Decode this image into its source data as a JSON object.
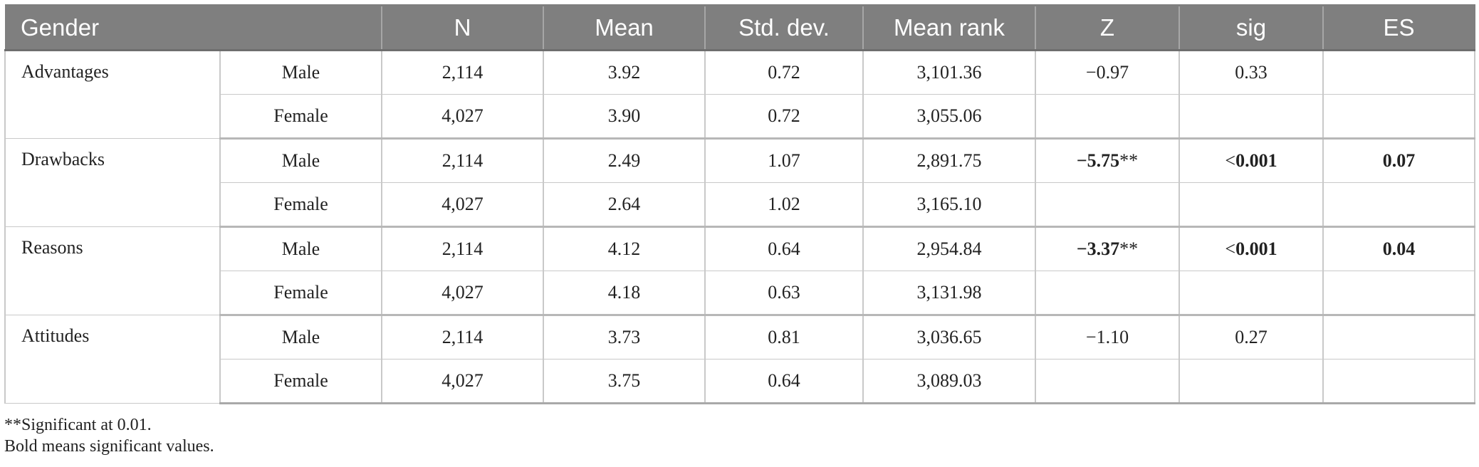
{
  "table": {
    "headers": [
      "Gender",
      "",
      "N",
      "Mean",
      "Std. dev.",
      "Mean rank",
      "Z",
      "sig",
      "ES"
    ],
    "groups": [
      {
        "variable": "Advantages",
        "z": "−0.97",
        "z_stars": "",
        "z_bold": false,
        "sig": "0.33",
        "sig_bold": false,
        "es": "",
        "es_bold": false,
        "rows": [
          {
            "gender": "Male",
            "n": "2,114",
            "mean": "3.92",
            "sd": "0.72",
            "mean_rank": "3,101.36"
          },
          {
            "gender": "Female",
            "n": "4,027",
            "mean": "3.90",
            "sd": "0.72",
            "mean_rank": "3,055.06"
          }
        ]
      },
      {
        "variable": "Drawbacks",
        "z": "−5.75",
        "z_stars": "**",
        "z_bold": true,
        "sig": "<0.001",
        "sig_bold": true,
        "es": "0.07",
        "es_bold": true,
        "rows": [
          {
            "gender": "Male",
            "n": "2,114",
            "mean": "2.49",
            "sd": "1.07",
            "mean_rank": "2,891.75"
          },
          {
            "gender": "Female",
            "n": "4,027",
            "mean": "2.64",
            "sd": "1.02",
            "mean_rank": "3,165.10"
          }
        ]
      },
      {
        "variable": "Reasons",
        "z": "−3.37",
        "z_stars": "**",
        "z_bold": true,
        "sig": "<0.001",
        "sig_bold": true,
        "es": "0.04",
        "es_bold": true,
        "rows": [
          {
            "gender": "Male",
            "n": "2,114",
            "mean": "4.12",
            "sd": "0.64",
            "mean_rank": "2,954.84"
          },
          {
            "gender": "Female",
            "n": "4,027",
            "mean": "4.18",
            "sd": "0.63",
            "mean_rank": "3,131.98"
          }
        ]
      },
      {
        "variable": "Attitudes",
        "z": "−1.10",
        "z_stars": "",
        "z_bold": false,
        "sig": "0.27",
        "sig_bold": false,
        "es": "",
        "es_bold": false,
        "rows": [
          {
            "gender": "Male",
            "n": "2,114",
            "mean": "3.73",
            "sd": "0.81",
            "mean_rank": "3,036.65"
          },
          {
            "gender": "Female",
            "n": "4,027",
            "mean": "3.75",
            "sd": "0.64",
            "mean_rank": "3,089.03"
          }
        ]
      }
    ]
  },
  "notes": [
    "**Significant at 0.01.",
    "Bold means significant values."
  ]
}
